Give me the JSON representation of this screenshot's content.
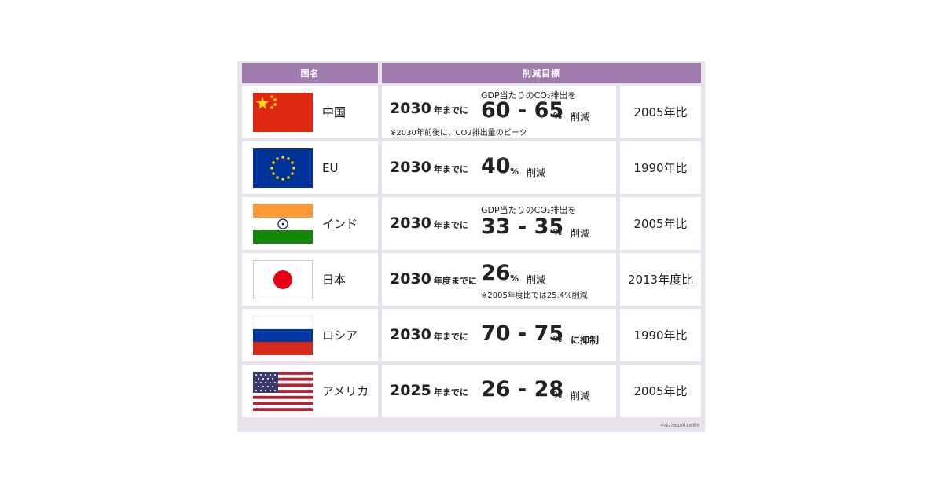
{
  "header": {
    "country_label": "国名",
    "target_label": "削減目標"
  },
  "rows": [
    {
      "country": "中国",
      "flag": "china-flag",
      "year": "2030",
      "by": "年までに",
      "gdp": "GDP当たりのCO₂排出を",
      "value": "60 - 65",
      "unit": "%",
      "action": "削減",
      "note": "※2030年前後に、CO2排出量のピーク",
      "base": "2005年比"
    },
    {
      "country": "EU",
      "flag": "eu-flag",
      "year": "2030",
      "by": "年までに",
      "value": "40",
      "unit": "%",
      "action": "削減",
      "base": "1990年比"
    },
    {
      "country": "インド",
      "flag": "india-flag",
      "year": "2030",
      "by": "年までに",
      "gdp": "GDP当たりのCO₂排出を",
      "value": "33 - 35",
      "unit": "%",
      "action": "削減",
      "base": "2005年比"
    },
    {
      "country": "日本",
      "flag": "japan-flag",
      "year": "2030",
      "by": "年度までに",
      "value": "26",
      "unit": "%",
      "action": "削減",
      "note": "※2005年度比では25.4%削減",
      "base": "2013年度比"
    },
    {
      "country": "ロシア",
      "flag": "russia-flag",
      "year": "2030",
      "by": "年までに",
      "value": "70 - 75",
      "unit": "%",
      "action": "に抑制",
      "base": "1990年比"
    },
    {
      "country": "アメリカ",
      "flag": "usa-flag",
      "year": "2025",
      "by": "年までに",
      "value": "26 - 28",
      "unit": "%",
      "action": "削減",
      "base": "2005年比"
    }
  ],
  "footnote": "平成27年10月1日現在"
}
